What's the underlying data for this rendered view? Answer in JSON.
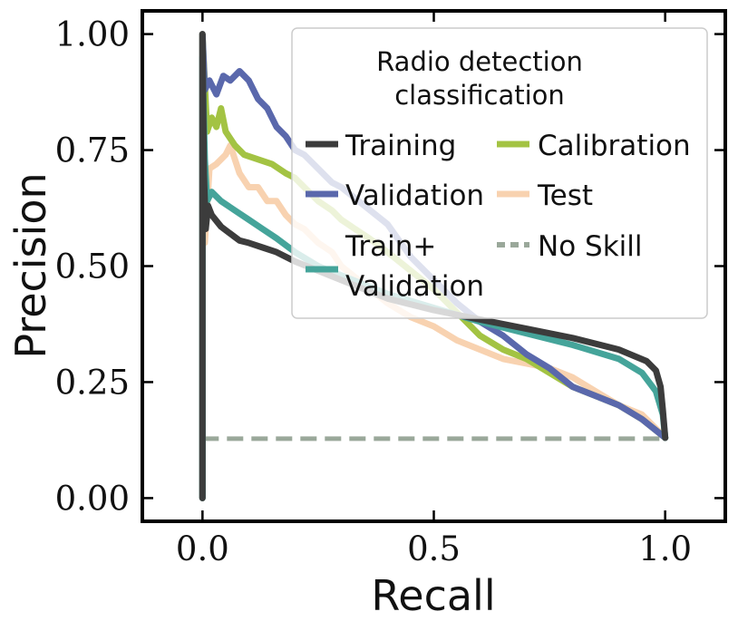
{
  "chart_data": {
    "type": "line",
    "title": "",
    "xlabel": "Recall",
    "ylabel": "Precision",
    "xlim": [
      -0.13,
      1.13
    ],
    "ylim": [
      -0.05,
      1.05
    ],
    "xticks": [
      {
        "value": 0.0,
        "label": "0.0"
      },
      {
        "value": 0.5,
        "label": "0.5"
      },
      {
        "value": 1.0,
        "label": "1.0"
      }
    ],
    "yticks": [
      {
        "value": 0.0,
        "label": "0.00"
      },
      {
        "value": 0.25,
        "label": "0.25"
      },
      {
        "value": 0.5,
        "label": "0.50"
      },
      {
        "value": 0.75,
        "label": "0.75"
      },
      {
        "value": 1.0,
        "label": "1.00"
      }
    ],
    "grid": false,
    "legend": {
      "title_line1": "Radio detection",
      "title_line2": "classification",
      "placement": "top-right",
      "columns": 2
    },
    "series": [
      {
        "name": "Training",
        "label_lines": [
          "Training"
        ],
        "color": "#3c3c3c",
        "style": "solid",
        "points": [
          [
            0.0,
            0.0
          ],
          [
            0.0,
            1.0
          ],
          [
            0.003,
            0.7
          ],
          [
            0.007,
            0.58
          ],
          [
            0.012,
            0.63
          ],
          [
            0.02,
            0.61
          ],
          [
            0.04,
            0.585
          ],
          [
            0.06,
            0.57
          ],
          [
            0.08,
            0.555
          ],
          [
            0.1,
            0.55
          ],
          [
            0.13,
            0.54
          ],
          [
            0.16,
            0.53
          ],
          [
            0.2,
            0.51
          ],
          [
            0.25,
            0.49
          ],
          [
            0.3,
            0.47
          ],
          [
            0.35,
            0.45
          ],
          [
            0.4,
            0.43
          ],
          [
            0.5,
            0.405
          ],
          [
            0.6,
            0.385
          ],
          [
            0.7,
            0.365
          ],
          [
            0.8,
            0.345
          ],
          [
            0.9,
            0.32
          ],
          [
            0.96,
            0.295
          ],
          [
            0.98,
            0.275
          ],
          [
            0.99,
            0.24
          ],
          [
            0.995,
            0.19
          ],
          [
            1.0,
            0.13
          ]
        ]
      },
      {
        "name": "Validation",
        "label_lines": [
          "Validation"
        ],
        "color": "#5a68ac",
        "style": "solid",
        "points": [
          [
            0.0,
            0.0
          ],
          [
            0.0,
            1.0
          ],
          [
            0.005,
            0.88
          ],
          [
            0.015,
            0.9
          ],
          [
            0.03,
            0.87
          ],
          [
            0.045,
            0.91
          ],
          [
            0.06,
            0.9
          ],
          [
            0.08,
            0.92
          ],
          [
            0.1,
            0.9
          ],
          [
            0.12,
            0.86
          ],
          [
            0.14,
            0.84
          ],
          [
            0.16,
            0.8
          ],
          [
            0.18,
            0.78
          ],
          [
            0.2,
            0.75
          ],
          [
            0.22,
            0.74
          ],
          [
            0.25,
            0.71
          ],
          [
            0.28,
            0.68
          ],
          [
            0.3,
            0.67
          ],
          [
            0.35,
            0.63
          ],
          [
            0.4,
            0.59
          ],
          [
            0.45,
            0.52
          ],
          [
            0.5,
            0.47
          ],
          [
            0.55,
            0.42
          ],
          [
            0.6,
            0.38
          ],
          [
            0.65,
            0.35
          ],
          [
            0.7,
            0.31
          ],
          [
            0.75,
            0.28
          ],
          [
            0.8,
            0.24
          ],
          [
            0.85,
            0.22
          ],
          [
            0.9,
            0.2
          ],
          [
            0.95,
            0.17
          ],
          [
            1.0,
            0.13
          ]
        ]
      },
      {
        "name": "Train+Validation",
        "label_lines": [
          "Train+",
          "Validation"
        ],
        "color": "#45a49a",
        "style": "solid",
        "points": [
          [
            0.0,
            0.0
          ],
          [
            0.0,
            0.95
          ],
          [
            0.005,
            0.73
          ],
          [
            0.01,
            0.64
          ],
          [
            0.02,
            0.66
          ],
          [
            0.04,
            0.64
          ],
          [
            0.07,
            0.62
          ],
          [
            0.1,
            0.6
          ],
          [
            0.13,
            0.58
          ],
          [
            0.16,
            0.56
          ],
          [
            0.2,
            0.53
          ],
          [
            0.25,
            0.5
          ],
          [
            0.3,
            0.48
          ],
          [
            0.35,
            0.46
          ],
          [
            0.4,
            0.44
          ],
          [
            0.5,
            0.41
          ],
          [
            0.6,
            0.38
          ],
          [
            0.7,
            0.355
          ],
          [
            0.8,
            0.33
          ],
          [
            0.9,
            0.3
          ],
          [
            0.95,
            0.27
          ],
          [
            0.98,
            0.23
          ],
          [
            0.995,
            0.18
          ],
          [
            1.0,
            0.13
          ]
        ]
      },
      {
        "name": "Calibration",
        "label_lines": [
          "Calibration"
        ],
        "color": "#a3c343",
        "style": "solid",
        "points": [
          [
            0.0,
            0.0
          ],
          [
            0.0,
            1.0
          ],
          [
            0.01,
            0.79
          ],
          [
            0.02,
            0.82
          ],
          [
            0.03,
            0.8
          ],
          [
            0.04,
            0.84
          ],
          [
            0.05,
            0.79
          ],
          [
            0.07,
            0.76
          ],
          [
            0.09,
            0.74
          ],
          [
            0.12,
            0.73
          ],
          [
            0.15,
            0.72
          ],
          [
            0.18,
            0.7
          ],
          [
            0.2,
            0.69
          ],
          [
            0.23,
            0.66
          ],
          [
            0.25,
            0.64
          ],
          [
            0.28,
            0.62
          ],
          [
            0.3,
            0.6
          ],
          [
            0.33,
            0.58
          ],
          [
            0.36,
            0.56
          ],
          [
            0.4,
            0.53
          ],
          [
            0.45,
            0.49
          ],
          [
            0.5,
            0.45
          ],
          [
            0.55,
            0.4
          ],
          [
            0.6,
            0.35
          ],
          [
            0.65,
            0.32
          ],
          [
            0.7,
            0.3
          ],
          [
            0.75,
            0.27
          ],
          [
            0.8,
            0.24
          ],
          [
            0.85,
            0.22
          ],
          [
            0.9,
            0.2
          ],
          [
            0.95,
            0.17
          ],
          [
            1.0,
            0.13
          ]
        ]
      },
      {
        "name": "Test",
        "label_lines": [
          "Test"
        ],
        "color": "#f8d2b0",
        "style": "solid",
        "points": [
          [
            0.0,
            0.0
          ],
          [
            0.0,
            1.0
          ],
          [
            0.005,
            0.55
          ],
          [
            0.015,
            0.71
          ],
          [
            0.03,
            0.72
          ],
          [
            0.05,
            0.74
          ],
          [
            0.06,
            0.76
          ],
          [
            0.08,
            0.7
          ],
          [
            0.1,
            0.67
          ],
          [
            0.12,
            0.67
          ],
          [
            0.14,
            0.64
          ],
          [
            0.16,
            0.64
          ],
          [
            0.18,
            0.61
          ],
          [
            0.2,
            0.59
          ],
          [
            0.22,
            0.58
          ],
          [
            0.25,
            0.55
          ],
          [
            0.28,
            0.53
          ],
          [
            0.3,
            0.5
          ],
          [
            0.35,
            0.46
          ],
          [
            0.4,
            0.42
          ],
          [
            0.45,
            0.39
          ],
          [
            0.5,
            0.37
          ],
          [
            0.55,
            0.34
          ],
          [
            0.6,
            0.32
          ],
          [
            0.65,
            0.3
          ],
          [
            0.7,
            0.29
          ],
          [
            0.75,
            0.28
          ],
          [
            0.8,
            0.26
          ],
          [
            0.85,
            0.23
          ],
          [
            0.9,
            0.2
          ],
          [
            0.95,
            0.18
          ],
          [
            1.0,
            0.13
          ]
        ]
      },
      {
        "name": "No Skill",
        "label_lines": [
          "No Skill"
        ],
        "color": "#9aa89a",
        "style": "dashed",
        "points": [
          [
            0.0,
            0.128
          ],
          [
            1.0,
            0.128
          ]
        ]
      }
    ]
  }
}
